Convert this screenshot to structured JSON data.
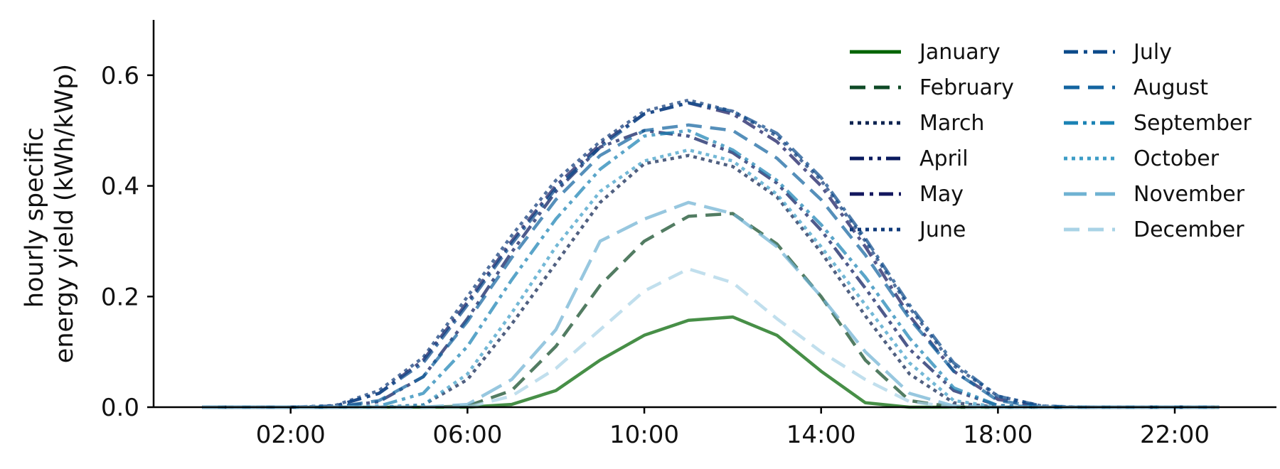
{
  "chart_data": {
    "type": "line",
    "ylabel_lines": [
      "hourly specific",
      "energy yield (kWh/kWp)"
    ],
    "xlabel": "",
    "x": [
      0,
      1,
      2,
      3,
      4,
      5,
      6,
      7,
      8,
      9,
      10,
      11,
      12,
      13,
      14,
      15,
      16,
      17,
      18,
      19,
      20,
      21,
      22,
      23
    ],
    "xtick_values": [
      2,
      6,
      10,
      14,
      18,
      22
    ],
    "xtick_labels": [
      "02:00",
      "06:00",
      "10:00",
      "14:00",
      "18:00",
      "22:00"
    ],
    "xlim": [
      -1.1,
      24.3
    ],
    "ylim": [
      0,
      0.7
    ],
    "ytick_values": [
      0,
      0.2,
      0.4,
      0.6
    ],
    "ytick_labels": [
      "0.0",
      "0.2",
      "0.4",
      "0.6"
    ],
    "grid": false,
    "legend_position": "top-right",
    "legend_columns": 2,
    "series": [
      {
        "name": "January",
        "color": "#006400",
        "dash": "solid",
        "values": [
          0,
          0,
          0,
          0,
          0,
          0,
          0,
          0.005,
          0.03,
          0.085,
          0.13,
          0.157,
          0.163,
          0.13,
          0.065,
          0.008,
          0,
          0,
          0,
          0,
          0,
          0,
          0,
          0
        ]
      },
      {
        "name": "February",
        "color": "#0f4a26",
        "dash": "dashed",
        "values": [
          0,
          0,
          0,
          0,
          0,
          0,
          0.002,
          0.03,
          0.11,
          0.22,
          0.3,
          0.345,
          0.35,
          0.295,
          0.2,
          0.085,
          0.012,
          0,
          0,
          0,
          0,
          0,
          0,
          0
        ]
      },
      {
        "name": "March",
        "color": "#0c2350",
        "dash": "dotted",
        "values": [
          0,
          0,
          0,
          0,
          0,
          0.004,
          0.05,
          0.15,
          0.26,
          0.37,
          0.44,
          0.455,
          0.435,
          0.38,
          0.28,
          0.165,
          0.06,
          0.008,
          0,
          0,
          0,
          0,
          0,
          0
        ]
      },
      {
        "name": "April",
        "color": "#0a1a5e",
        "dash": "dashdotdot",
        "values": [
          0,
          0,
          0,
          0,
          0.01,
          0.055,
          0.16,
          0.28,
          0.39,
          0.47,
          0.5,
          0.49,
          0.46,
          0.405,
          0.32,
          0.215,
          0.105,
          0.03,
          0.003,
          0,
          0,
          0,
          0,
          0
        ]
      },
      {
        "name": "May",
        "color": "#13175e",
        "dash": "dashdot",
        "values": [
          0,
          0,
          0,
          0.002,
          0.025,
          0.085,
          0.19,
          0.3,
          0.4,
          0.475,
          0.53,
          0.55,
          0.53,
          0.48,
          0.4,
          0.29,
          0.165,
          0.065,
          0.014,
          0.001,
          0,
          0,
          0,
          0
        ]
      },
      {
        "name": "June",
        "color": "#0f3a7a",
        "dash": "dotted",
        "values": [
          0,
          0,
          0,
          0.003,
          0.03,
          0.09,
          0.2,
          0.31,
          0.41,
          0.48,
          0.535,
          0.555,
          0.535,
          0.49,
          0.41,
          0.3,
          0.18,
          0.075,
          0.02,
          0.002,
          0,
          0,
          0,
          0
        ]
      },
      {
        "name": "July",
        "color": "#0b4a8a",
        "dash": "dashdot",
        "values": [
          0,
          0,
          0,
          0.002,
          0.025,
          0.08,
          0.185,
          0.295,
          0.395,
          0.47,
          0.53,
          0.55,
          0.535,
          0.495,
          0.415,
          0.305,
          0.185,
          0.08,
          0.02,
          0.002,
          0,
          0,
          0,
          0
        ]
      },
      {
        "name": "August",
        "color": "#1464a0",
        "dash": "dashed",
        "values": [
          0,
          0,
          0,
          0,
          0.012,
          0.055,
          0.155,
          0.27,
          0.375,
          0.455,
          0.5,
          0.51,
          0.5,
          0.45,
          0.375,
          0.275,
          0.16,
          0.065,
          0.012,
          0,
          0,
          0,
          0,
          0
        ]
      },
      {
        "name": "September",
        "color": "#1a82b4",
        "dash": "dashdotdot",
        "values": [
          0,
          0,
          0,
          0,
          0.002,
          0.025,
          0.11,
          0.23,
          0.34,
          0.43,
          0.49,
          0.5,
          0.465,
          0.41,
          0.33,
          0.235,
          0.125,
          0.035,
          0.003,
          0,
          0,
          0,
          0,
          0
        ]
      },
      {
        "name": "October",
        "color": "#3d9cc6",
        "dash": "dotted",
        "values": [
          0,
          0,
          0,
          0,
          0,
          0.004,
          0.06,
          0.17,
          0.29,
          0.39,
          0.445,
          0.465,
          0.445,
          0.385,
          0.29,
          0.185,
          0.08,
          0.012,
          0,
          0,
          0,
          0,
          0,
          0
        ]
      },
      {
        "name": "November",
        "color": "#6fb2d2",
        "dash": "longdash",
        "values": [
          0,
          0,
          0,
          0,
          0,
          0,
          0.005,
          0.05,
          0.14,
          0.3,
          0.34,
          0.37,
          0.35,
          0.29,
          0.2,
          0.1,
          0.025,
          0.002,
          0,
          0,
          0,
          0,
          0,
          0
        ]
      },
      {
        "name": "December",
        "color": "#a9d3e6",
        "dash": "dashed",
        "values": [
          0,
          0,
          0,
          0,
          0,
          0,
          0,
          0.02,
          0.07,
          0.14,
          0.21,
          0.25,
          0.225,
          0.16,
          0.1,
          0.05,
          0.01,
          0,
          0,
          0,
          0,
          0,
          0,
          0
        ]
      }
    ]
  }
}
